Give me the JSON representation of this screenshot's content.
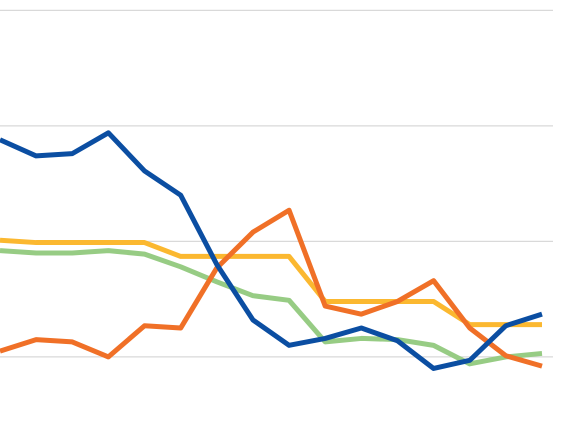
{
  "chart_data": {
    "type": "line",
    "categories": [
      null,
      null,
      null,
      null,
      null,
      null,
      null,
      null,
      null,
      null,
      null,
      null,
      null,
      null,
      null,
      null
    ],
    "series": [
      {
        "color": "#97cc84",
        "values": [
          1.92,
          1.9,
          1.9,
          1.92,
          1.89,
          1.78,
          1.65,
          1.53,
          1.49,
          1.13,
          1.16,
          1.15,
          1.1,
          0.94,
          1.0,
          1.03
        ]
      },
      {
        "color": "#fbb830",
        "values": [
          2.01,
          1.99,
          1.99,
          1.99,
          1.99,
          1.87,
          1.87,
          1.87,
          1.87,
          1.48,
          1.48,
          1.48,
          1.48,
          1.28,
          1.28,
          1.28
        ]
      },
      {
        "color": "#f07027",
        "values": [
          1.05,
          1.15,
          1.13,
          1.0,
          1.27,
          1.25,
          1.77,
          2.08,
          2.27,
          1.44,
          1.37,
          1.48,
          1.66,
          1.25,
          1.01,
          0.92
        ]
      },
      {
        "color": "#0b4ea2",
        "values": [
          2.88,
          2.74,
          2.76,
          2.94,
          2.61,
          2.4,
          1.8,
          1.32,
          1.1,
          1.16,
          1.25,
          1.14,
          0.9,
          0.97,
          1.27,
          1.37
        ]
      }
    ],
    "ylim": [
      0.22,
      4.09
    ],
    "yticks": [
      1,
      2,
      3,
      4
    ],
    "grid": true
  }
}
